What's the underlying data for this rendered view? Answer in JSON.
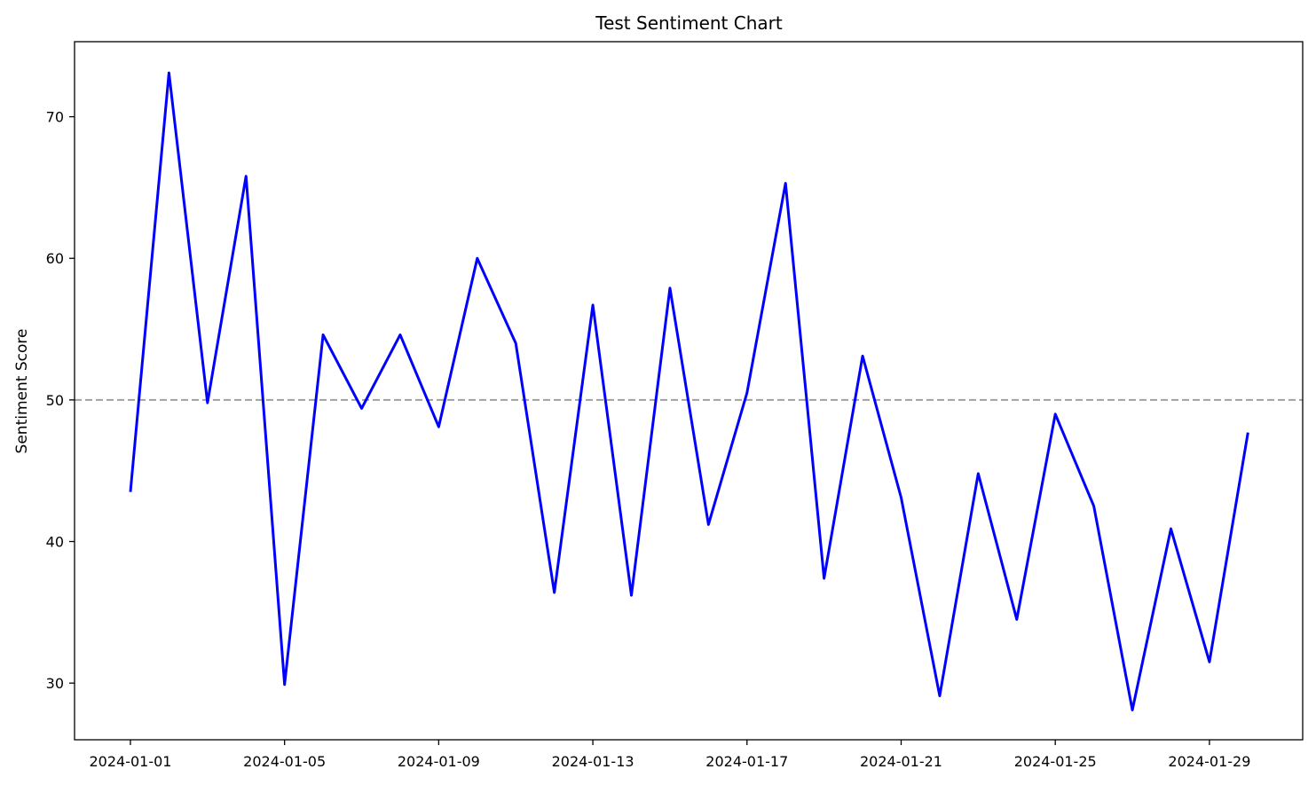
{
  "chart_data": {
    "type": "line",
    "title": "Test Sentiment Chart",
    "xlabel": "",
    "ylabel": "Sentiment Score",
    "x_tick_labels": [
      "2024-01-01",
      "2024-01-05",
      "2024-01-09",
      "2024-01-13",
      "2024-01-17",
      "2024-01-21",
      "2024-01-25",
      "2024-01-29"
    ],
    "y_ticks": [
      30,
      40,
      50,
      60,
      70
    ],
    "ylim": [
      26,
      75.3
    ],
    "xlim": [
      "2023-12-30.55",
      "2024-01-31.42"
    ],
    "grid": false,
    "reference_line": {
      "y": 50,
      "style": "dashed",
      "color": "#a0a0a0"
    },
    "series": [
      {
        "color": "#0000ff",
        "x": [
          "2024-01-01",
          "2024-01-02",
          "2024-01-03",
          "2024-01-04",
          "2024-01-05",
          "2024-01-06",
          "2024-01-07",
          "2024-01-08",
          "2024-01-09",
          "2024-01-10",
          "2024-01-11",
          "2024-01-12",
          "2024-01-13",
          "2024-01-14",
          "2024-01-15",
          "2024-01-16",
          "2024-01-17",
          "2024-01-18",
          "2024-01-19",
          "2024-01-20",
          "2024-01-21",
          "2024-01-22",
          "2024-01-23",
          "2024-01-24",
          "2024-01-25",
          "2024-01-26",
          "2024-01-27",
          "2024-01-28",
          "2024-01-29",
          "2024-01-30"
        ],
        "values": [
          43.5,
          73.1,
          49.8,
          65.8,
          29.9,
          54.6,
          49.4,
          54.6,
          48.1,
          60.0,
          54.0,
          36.4,
          56.7,
          36.2,
          57.9,
          41.2,
          50.5,
          65.3,
          37.4,
          53.1,
          43.1,
          29.1,
          44.8,
          34.5,
          49.0,
          42.5,
          28.1,
          40.9,
          31.5,
          47.7
        ]
      }
    ]
  }
}
